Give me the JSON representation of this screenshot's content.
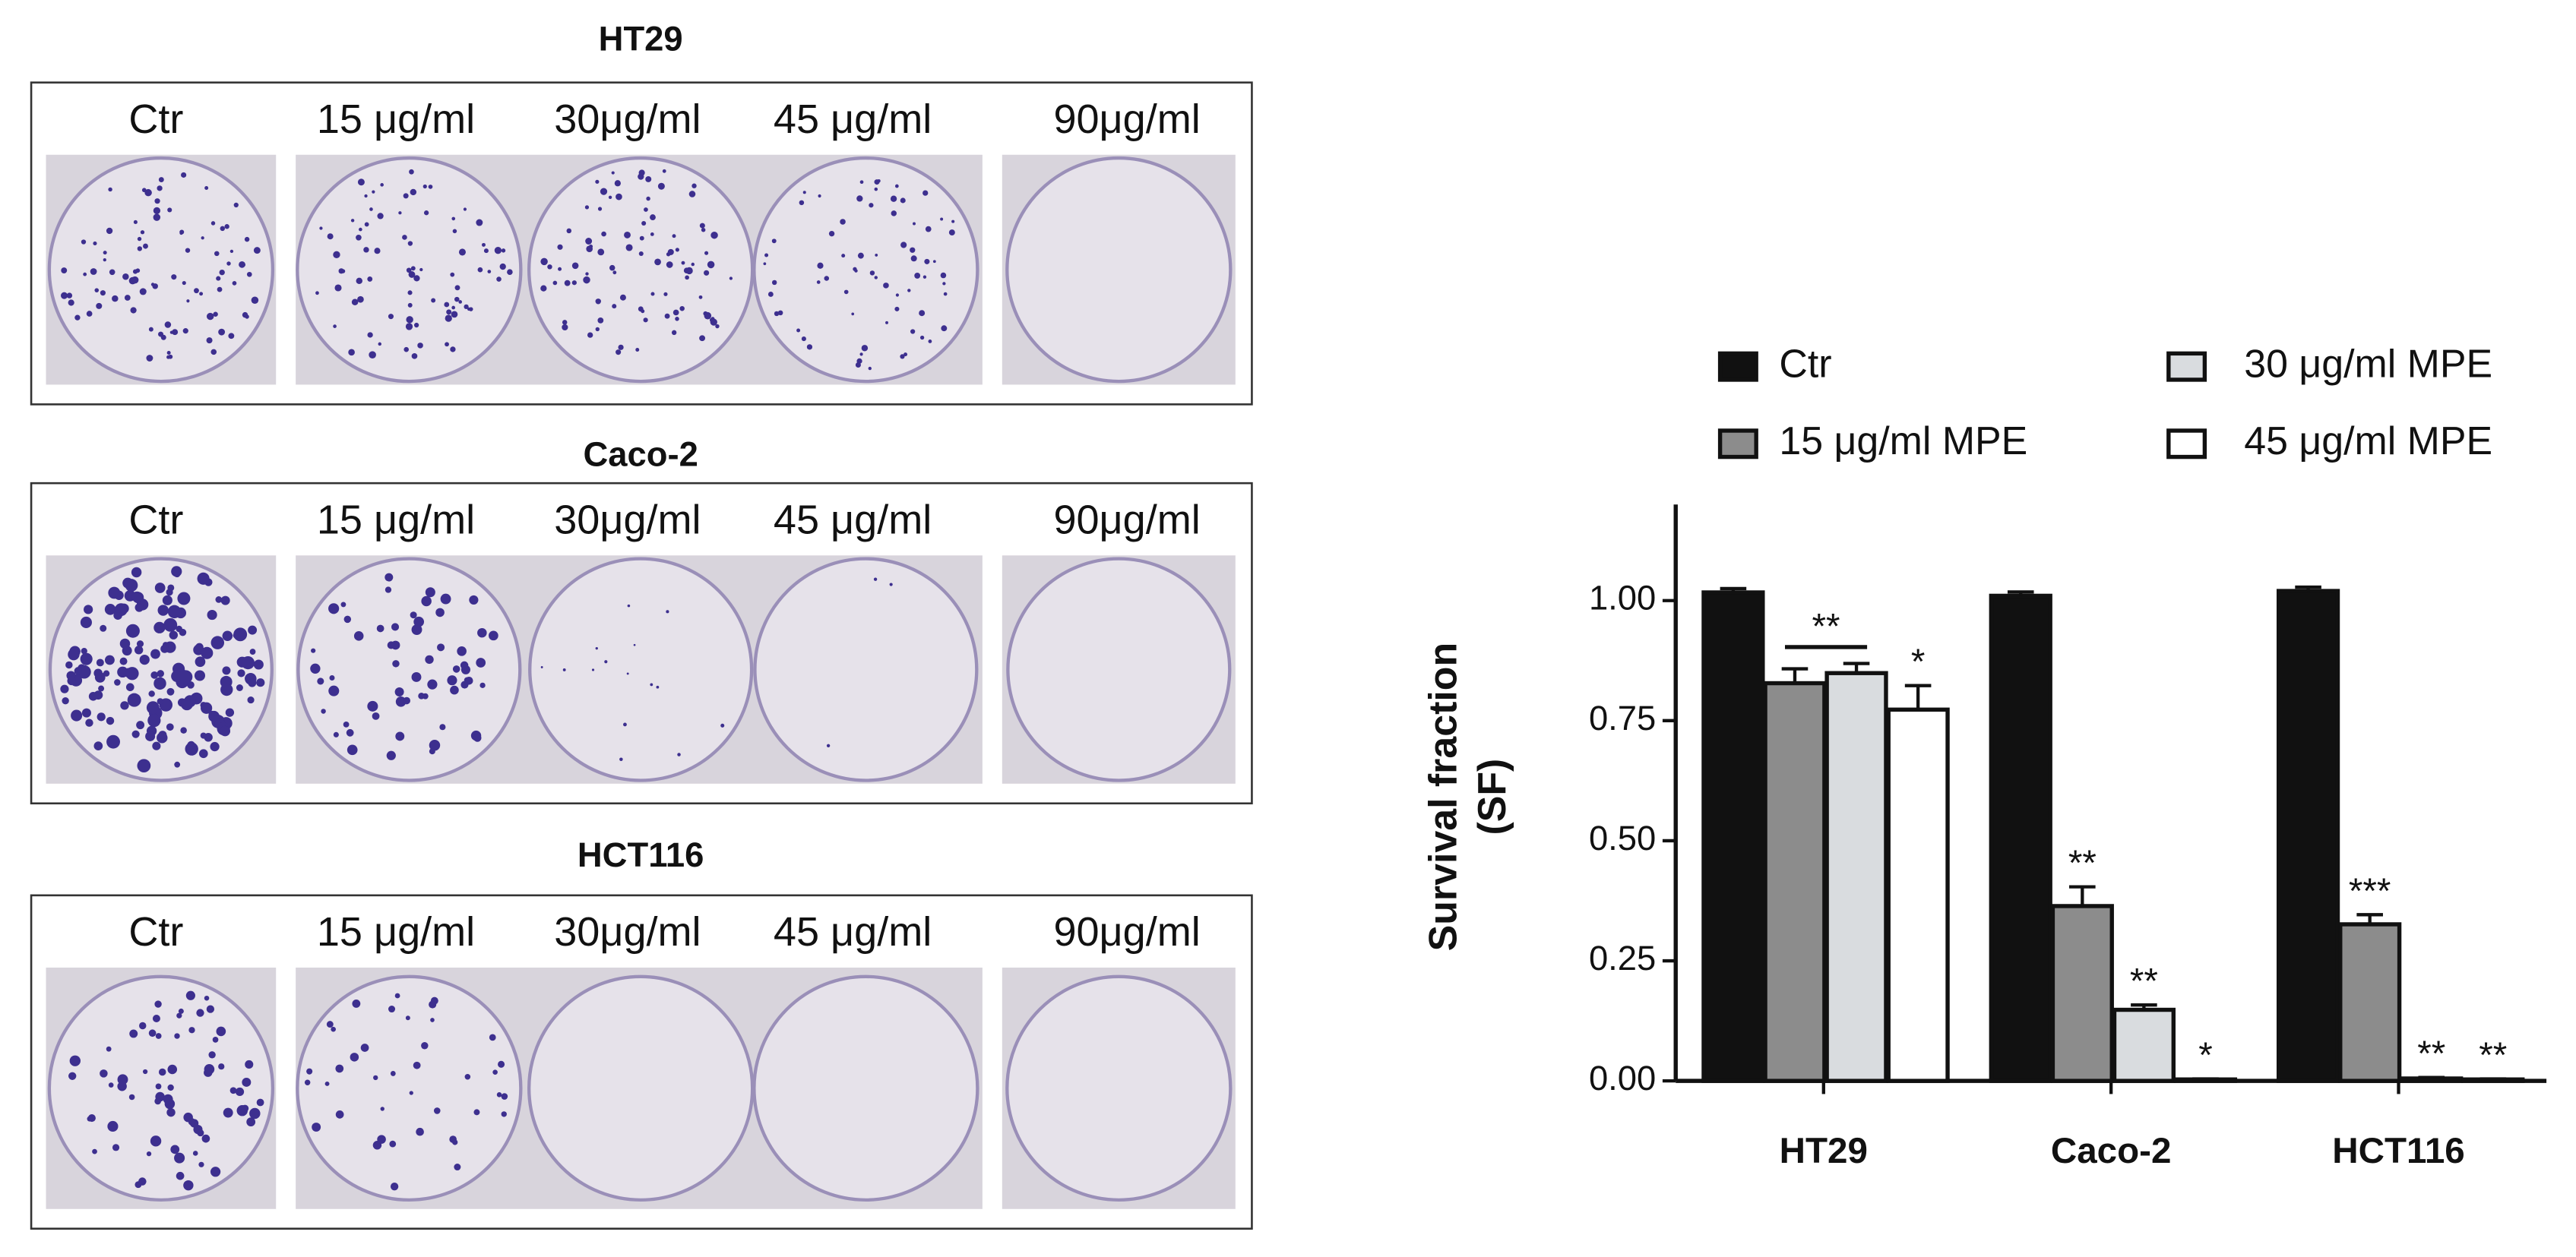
{
  "plates": {
    "panels": [
      {
        "title": "HT29",
        "labels": [
          "Ctr",
          "15 μg/ml",
          "30μg/ml",
          "45 μg/ml",
          "90μg/ml"
        ]
      },
      {
        "title": "Caco-2",
        "labels": [
          "Ctr",
          "15 μg/ml",
          "30μg/ml",
          "45 μg/ml",
          "90μg/ml"
        ]
      },
      {
        "title": "HCT116",
        "labels": [
          "Ctr",
          "15 μg/ml",
          "30μg/ml",
          "45 μg/ml",
          "90μg/ml"
        ]
      }
    ]
  },
  "chart_data": {
    "type": "bar",
    "y_label": [
      "Survival fraction",
      "(SF)"
    ],
    "categories": [
      "HT29",
      "Caco-2",
      "HCT116"
    ],
    "ylim": [
      0,
      1.2
    ],
    "yticks": [
      {
        "value": 0,
        "label": "0.00"
      },
      {
        "value": 0.25,
        "label": "0.25"
      },
      {
        "value": 0.5,
        "label": "0.50"
      },
      {
        "value": 0.75,
        "label": "0.75"
      },
      {
        "value": 1,
        "label": "1.00"
      }
    ],
    "series": [
      {
        "name": "Ctr",
        "color": "#111111",
        "values": [
          1.017,
          1.01,
          1.02
        ],
        "errors": [
          0.008,
          0.008,
          0.008
        ],
        "annotations": [
          null,
          null,
          null
        ]
      },
      {
        "name": "15 μg/ml MPE",
        "color": "#8c8c8c",
        "values": [
          0.828,
          0.364,
          0.326
        ],
        "errors": [
          0.03,
          0.04,
          0.02
        ],
        "annotations": [
          "**",
          "**",
          "***"
        ]
      },
      {
        "name": "30 μg/ml MPE",
        "color": "#d9dcdf",
        "values": [
          0.849,
          0.148,
          0.005
        ],
        "errors": [
          0.02,
          0.01,
          0.002
        ],
        "annotations": [
          null,
          "**",
          "**"
        ]
      },
      {
        "name": "45 μg/ml MPE",
        "color": "#ffffff",
        "values": [
          0.773,
          0.003,
          0.003
        ],
        "errors": [
          0.05,
          0.001,
          0.001
        ],
        "annotations": [
          "*",
          "*",
          "**"
        ]
      }
    ]
  }
}
